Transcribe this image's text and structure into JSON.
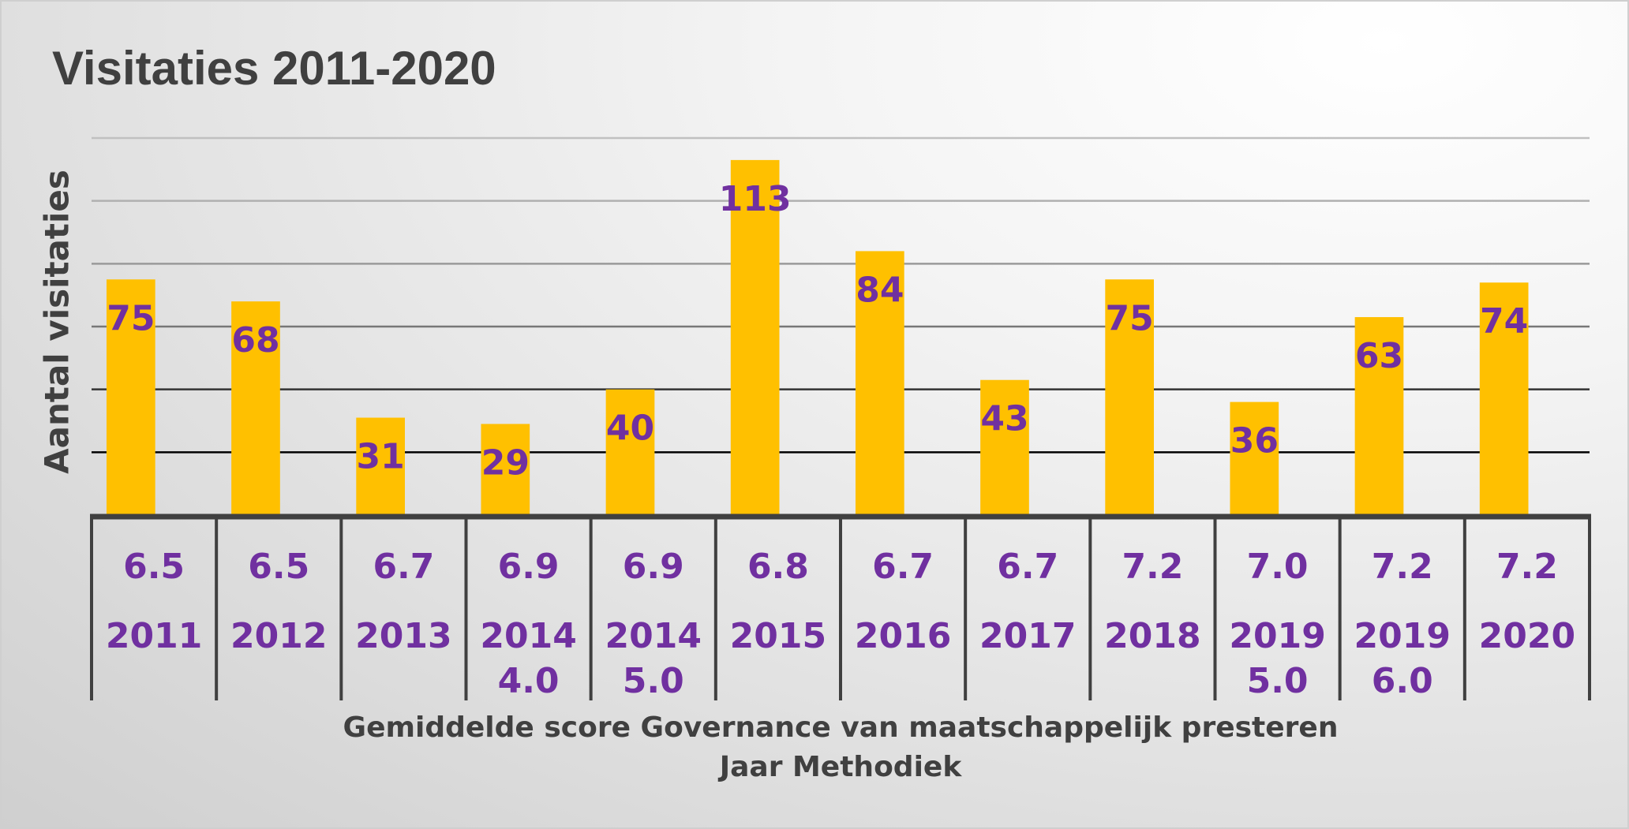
{
  "chart_data": {
    "type": "bar",
    "title": "Visitaties 2011-2020",
    "ylabel": "Aantal visitaties",
    "xlabel": [
      "Gemiddelde score Governance van maatschappelijk presteren",
      "Jaar Methodiek"
    ],
    "ylim": [
      0,
      120
    ],
    "gridlines": [
      20,
      40,
      60,
      80,
      100,
      120
    ],
    "grid": true,
    "categories": [
      {
        "score": "6.5",
        "year": "2011",
        "method": ""
      },
      {
        "score": "6.5",
        "year": "2012",
        "method": ""
      },
      {
        "score": "6.7",
        "year": "2013",
        "method": ""
      },
      {
        "score": "6.9",
        "year": "2014",
        "method": "4.0"
      },
      {
        "score": "6.9",
        "year": "2014",
        "method": "5.0"
      },
      {
        "score": "6.8",
        "year": "2015",
        "method": ""
      },
      {
        "score": "6.7",
        "year": "2016",
        "method": ""
      },
      {
        "score": "6.7",
        "year": "2017",
        "method": ""
      },
      {
        "score": "7.2",
        "year": "2018",
        "method": ""
      },
      {
        "score": "7.0",
        "year": "2019",
        "method": "5.0"
      },
      {
        "score": "7.2",
        "year": "2019",
        "method": "6.0"
      },
      {
        "score": "7.2",
        "year": "2020",
        "method": ""
      }
    ],
    "values": [
      75,
      68,
      31,
      29,
      40,
      113,
      84,
      43,
      75,
      36,
      63,
      74
    ],
    "colors": {
      "bar": "#FFC000",
      "label": "#7030A0",
      "text": "#404040"
    }
  }
}
